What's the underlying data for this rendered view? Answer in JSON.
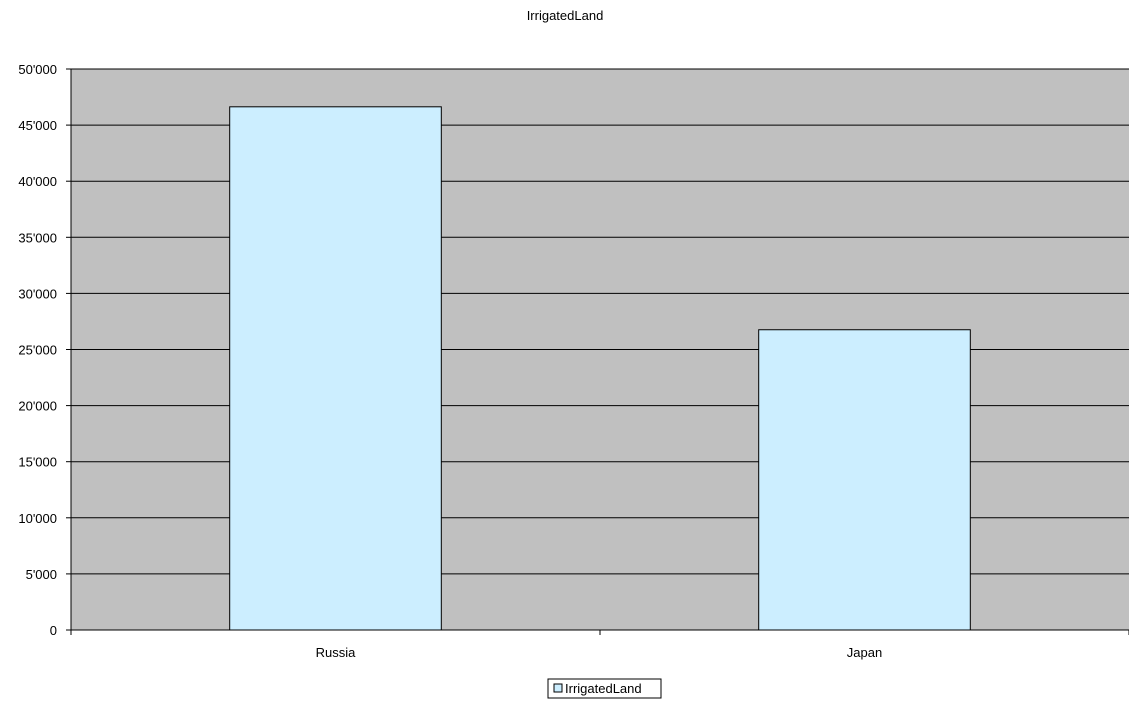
{
  "chart_data": {
    "type": "bar",
    "title": "IrrigatedLand",
    "xlabel": "",
    "ylabel": "",
    "categories": [
      "Russia",
      "Japan"
    ],
    "series": [
      {
        "name": "IrrigatedLand",
        "values": [
          46630,
          26760
        ]
      }
    ],
    "ylim": [
      0,
      50000
    ],
    "y_ticks": [
      0,
      5000,
      10000,
      15000,
      20000,
      25000,
      30000,
      35000,
      40000,
      45000,
      50000
    ],
    "y_tick_labels": [
      "0",
      "5'000",
      "10'000",
      "15'000",
      "20'000",
      "25'000",
      "30'000",
      "35'000",
      "40'000",
      "45'000",
      "50'000"
    ],
    "grid": true,
    "legend_position": "bottom-center"
  },
  "colors": {
    "plot_background": "#c0c0c0",
    "bar_fill": "#cceeff",
    "bar_stroke": "#000000",
    "gridline": "#000000"
  }
}
